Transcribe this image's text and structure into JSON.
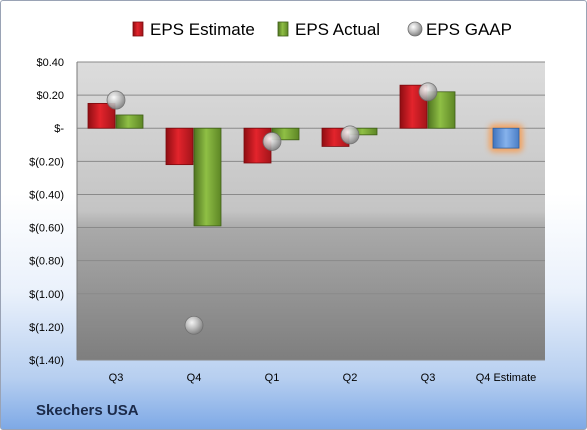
{
  "chart_data": {
    "type": "bar",
    "categories": [
      "Q3",
      "Q4",
      "Q1",
      "Q2",
      "Q3",
      "Q4 Estimate"
    ],
    "series": [
      {
        "name": "EPS Estimate",
        "values": [
          0.15,
          -0.22,
          -0.21,
          -0.11,
          0.26,
          null
        ],
        "color": "#c0141c"
      },
      {
        "name": "EPS Actual",
        "values": [
          0.08,
          -0.59,
          -0.07,
          -0.04,
          0.22,
          null
        ],
        "color": "#6e9a2c"
      },
      {
        "name": "EPS GAAP",
        "values": [
          0.17,
          -1.19,
          -0.08,
          -0.04,
          0.22,
          null
        ],
        "color": "#b8b8b8"
      }
    ],
    "forecast": {
      "category": "Q4 Estimate",
      "value": -0.12,
      "color": "#5b8fd6",
      "glow": "#f5a05a"
    },
    "ylim": [
      -1.4,
      0.4
    ],
    "yticks": [
      0.4,
      0.2,
      0,
      -0.2,
      -0.4,
      -0.6,
      -0.8,
      -1.0,
      -1.2,
      -1.4
    ],
    "ytick_labels": [
      "$0.40",
      "$0.20",
      "$-",
      "$(0.20)",
      "$(0.40)",
      "$(0.60)",
      "$(0.80)",
      "$(1.00)",
      "$(1.20)",
      "$(1.40)"
    ],
    "grid": true,
    "legend_position": "top"
  },
  "company": "Skechers USA"
}
